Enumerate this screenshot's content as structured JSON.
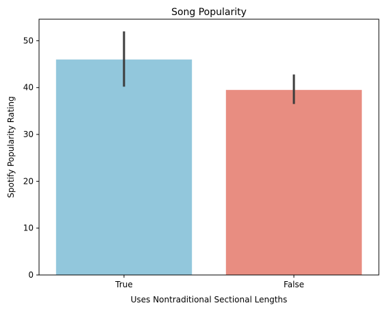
{
  "chart_data": {
    "type": "bar",
    "title": "Song Popularity",
    "xlabel": "Uses Nontraditional Sectional Lengths",
    "ylabel": "Spotify Popularity Rating",
    "categories": [
      "True",
      "False"
    ],
    "values": [
      46.0,
      39.5
    ],
    "error_low": [
      40.2,
      36.5
    ],
    "error_high": [
      52.0,
      42.8
    ],
    "colors": [
      "#92c7dc",
      "#e88d81"
    ],
    "ylim": [
      0,
      54.6
    ],
    "yticks": [
      0,
      10,
      20,
      30,
      40,
      50
    ],
    "grid": false
  }
}
